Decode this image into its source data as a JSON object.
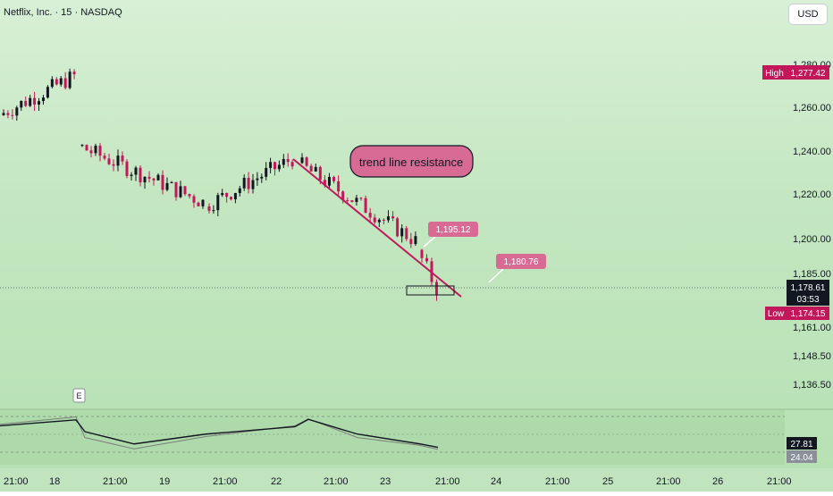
{
  "header": {
    "title": "Netflix, Inc. · 15 · NASDAQ",
    "currency_button": "USD"
  },
  "price_axis": {
    "ticks": [
      "1,280.00",
      "1,260.00",
      "1,240.00",
      "1,220.00",
      "1,200.00",
      "1,185.00",
      "1,161.00",
      "1,148.50",
      "1,136.50"
    ],
    "high_tag": {
      "label": "High",
      "value": "1,277.42"
    },
    "last_tag": {
      "value": "1,178.61",
      "timer": "03:53"
    },
    "low_tag": {
      "label": "Low",
      "value": "1,174.15"
    }
  },
  "time_axis": [
    "21:00",
    "18",
    "21:00",
    "19",
    "21:00",
    "22",
    "21:00",
    "23",
    "21:00",
    "24",
    "21:00",
    "25",
    "21:00",
    "26",
    "21:00"
  ],
  "annotations": {
    "callout": "trend line resistance",
    "label_1": "1,195.12",
    "label_2": "1,180.76",
    "earnings_marker": "E"
  },
  "indicator": {
    "value_1": "27.81",
    "value_2": "24.04"
  },
  "colors": {
    "up": "#131722",
    "down": "#c2185b",
    "trendline": "#c2185b",
    "high_tag": "#c2185b",
    "low_tag": "#c2185b",
    "last_tag": "#131722",
    "label_bg": "#d86b93"
  },
  "chart_data": {
    "type": "candlestick",
    "title": "Netflix, Inc. · 15 · NASDAQ",
    "y_range": [
      1130,
      1296
    ],
    "segments": [
      {
        "session": "17",
        "from": 1258,
        "to": 1276
      },
      {
        "session": "18",
        "from": 1244,
        "to": 1218
      },
      {
        "session": "19",
        "from": 1216,
        "to": 1238
      },
      {
        "session": "22",
        "from": 1236,
        "to": 1200
      },
      {
        "session": "23",
        "from": 1196,
        "to": 1178
      }
    ],
    "trendline": {
      "from": 1236,
      "to": 1175
    },
    "last_price": 1178.61,
    "high": 1277.42,
    "low": 1174.15,
    "indicator_series": {
      "line": [
        72,
        84,
        60,
        35,
        55,
        70,
        85,
        55,
        35,
        28
      ],
      "oscillator": [
        75,
        90,
        48,
        25,
        50,
        72,
        86,
        48,
        32,
        24
      ]
    }
  }
}
